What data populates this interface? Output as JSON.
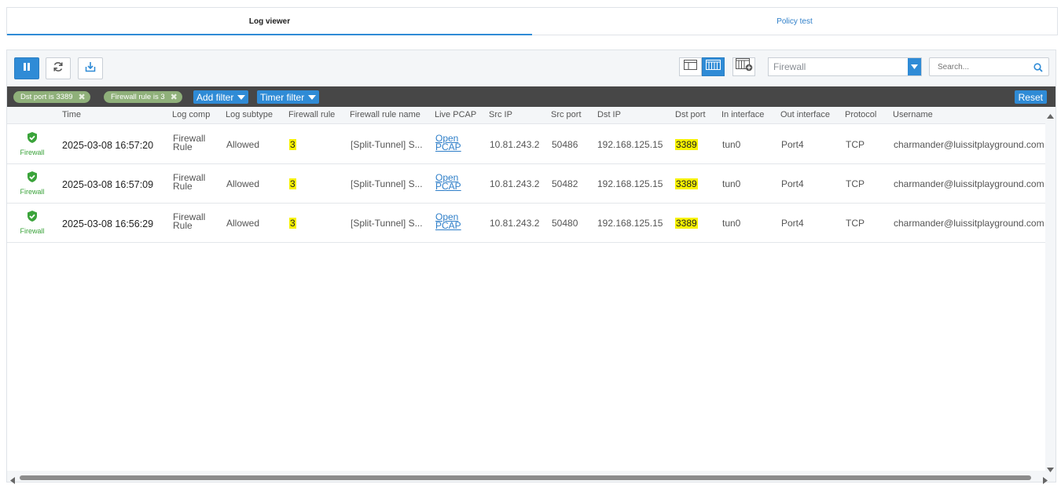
{
  "tabs": [
    {
      "label": "Log viewer",
      "active": true
    },
    {
      "label": "Policy test",
      "active": false
    }
  ],
  "toolbar": {
    "pause_icon": "pause-icon",
    "refresh_icon": "refresh-icon",
    "export_icon": "export-icon",
    "module_select": "Firewall",
    "search_placeholder": "Search..."
  },
  "filters": {
    "chips": [
      {
        "label": "Dst port is 3389"
      },
      {
        "label": "Firewall rule is 3"
      }
    ],
    "add_filter": "Add filter",
    "timer_filter": "Timer filter",
    "reset": "Reset"
  },
  "columns": [
    "Time",
    "Log comp",
    "Log subtype",
    "Firewall rule",
    "Firewall rule name",
    "Live PCAP",
    "Src IP",
    "Src port",
    "Dst IP",
    "Dst port",
    "In interface",
    "Out interface",
    "Protocol",
    "Username"
  ],
  "rows": [
    {
      "type": "Firewall",
      "time": "2025-03-08 16:57:20",
      "log_comp_1": "Firewall",
      "log_comp_2": "Rule",
      "subtype": "Allowed",
      "rule": "3",
      "rule_name": "[Split-Tunnel] S...",
      "pcap_1": "Open",
      "pcap_2": "PCAP",
      "src_ip": "10.81.243.2",
      "src_port": "50486",
      "dst_ip": "192.168.125.15",
      "dst_port": "3389",
      "in_if": "tun0",
      "out_if": "Port4",
      "protocol": "TCP",
      "username": "charmander@luissitplayground.com"
    },
    {
      "type": "Firewall",
      "time": "2025-03-08 16:57:09",
      "log_comp_1": "Firewall",
      "log_comp_2": "Rule",
      "subtype": "Allowed",
      "rule": "3",
      "rule_name": "[Split-Tunnel] S...",
      "pcap_1": "Open",
      "pcap_2": "PCAP",
      "src_ip": "10.81.243.2",
      "src_port": "50482",
      "dst_ip": "192.168.125.15",
      "dst_port": "3389",
      "in_if": "tun0",
      "out_if": "Port4",
      "protocol": "TCP",
      "username": "charmander@luissitplayground.com"
    },
    {
      "type": "Firewall",
      "time": "2025-03-08 16:56:29",
      "log_comp_1": "Firewall",
      "log_comp_2": "Rule",
      "subtype": "Allowed",
      "rule": "3",
      "rule_name": "[Split-Tunnel] S...",
      "pcap_1": "Open",
      "pcap_2": "PCAP",
      "src_ip": "10.81.243.2",
      "src_port": "50480",
      "dst_ip": "192.168.125.15",
      "dst_port": "3389",
      "in_if": "tun0",
      "out_if": "Port4",
      "protocol": "TCP",
      "username": "charmander@luissitplayground.com"
    }
  ],
  "colors": {
    "accent": "#2f8bd6",
    "highlight": "#f7f200",
    "chip": "#8fb07a",
    "filterbar": "#474747",
    "shield": "#3aa33a"
  }
}
